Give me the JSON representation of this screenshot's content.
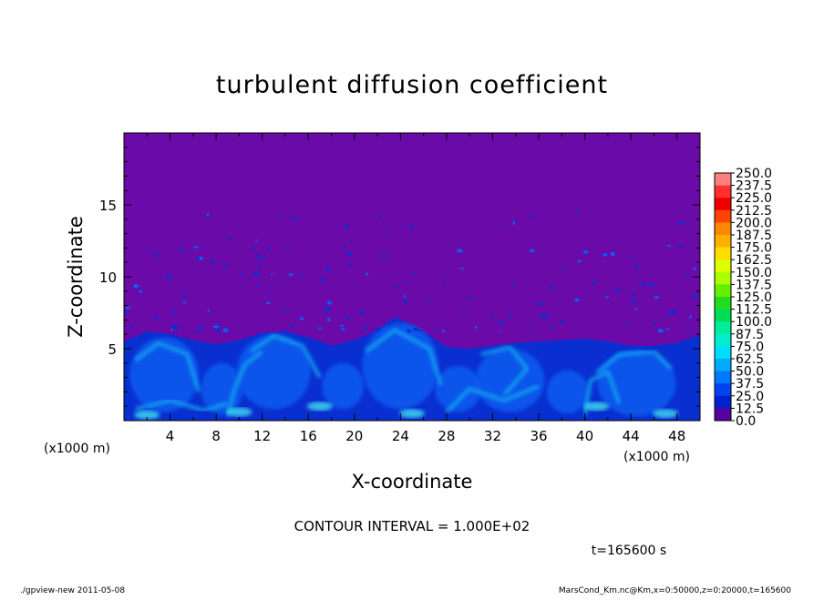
{
  "chart_data": {
    "type": "heatmap",
    "title": "turbulent diffusion coefficient",
    "xlabel": "X-coordinate",
    "ylabel": "Z-coordinate",
    "x_unit": "(x1000 m)",
    "y_unit": "(x1000 m)",
    "xlim": [
      0,
      50
    ],
    "ylim": [
      0,
      20
    ],
    "x_ticks": [
      "4",
      "8",
      "12",
      "16",
      "20",
      "24",
      "28",
      "32",
      "36",
      "40",
      "44",
      "48"
    ],
    "y_ticks": [
      "5",
      "10",
      "15"
    ],
    "contour_interval_text": "CONTOUR INTERVAL = 1.000E+02",
    "time_text": "t=165600 s",
    "colorbar": {
      "levels": [
        "250.0",
        "237.5",
        "225.0",
        "212.5",
        "200.0",
        "187.5",
        "175.0",
        "162.5",
        "150.0",
        "137.5",
        "125.0",
        "112.5",
        "100.0",
        "87.5",
        "75.0",
        "62.5",
        "50.0",
        "37.5",
        "25.0",
        "12.5",
        "0.0"
      ],
      "colors": [
        "#ff8080",
        "#ff3030",
        "#ee0000",
        "#ff4400",
        "#ff8800",
        "#ffb000",
        "#ffdd00",
        "#ddff00",
        "#aaff00",
        "#66ee00",
        "#22dd22",
        "#00dd55",
        "#00ee99",
        "#00eecc",
        "#00ddff",
        "#00aaff",
        "#0077ff",
        "#0044ee",
        "#0022cc",
        "#5500a0"
      ]
    },
    "background_color": "#6a0aa8",
    "flow_colors": {
      "low": "#0a2fd0",
      "mid": "#0a5cf0",
      "high": "#18a8f0",
      "peak": "#40e0f0"
    }
  },
  "footer": {
    "left": "./gpview-new   2011-05-08",
    "right": "MarsCond_Km.nc@Km,x=0:50000,z=0:20000,t=165600"
  }
}
